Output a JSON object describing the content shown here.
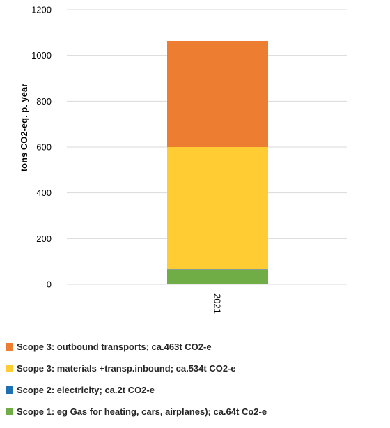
{
  "chart_data": {
    "type": "bar",
    "stacked": true,
    "categories": [
      "2021"
    ],
    "series": [
      {
        "name": "Scope 1: eg Gas for heating, cars, airplanes); ca.64t Co2-e",
        "values": [
          64
        ],
        "color": "#70ad47"
      },
      {
        "name": "Scope 2: electricity; ca.2t CO2-e",
        "values": [
          2
        ],
        "color": "#1f6fb4"
      },
      {
        "name": "Scope 3: materials +transp.inbound; ca.534t CO2-e",
        "values": [
          534
        ],
        "color": "#ffcd33"
      },
      {
        "name": "Scope 3: outbound transports; ca.463t CO2-e",
        "values": [
          463
        ],
        "color": "#ed7d31"
      }
    ],
    "legend_order": [
      3,
      2,
      1,
      0
    ],
    "title": "",
    "xlabel": "",
    "ylabel": "tons  CO2-eq. p. year",
    "ylim": [
      0,
      1200
    ],
    "yticks": [
      "0",
      "200",
      "400",
      "600",
      "800",
      "1000",
      "1200"
    ],
    "grid": true,
    "grid_color": "#d9d9d9",
    "legend_position": "bottom"
  }
}
